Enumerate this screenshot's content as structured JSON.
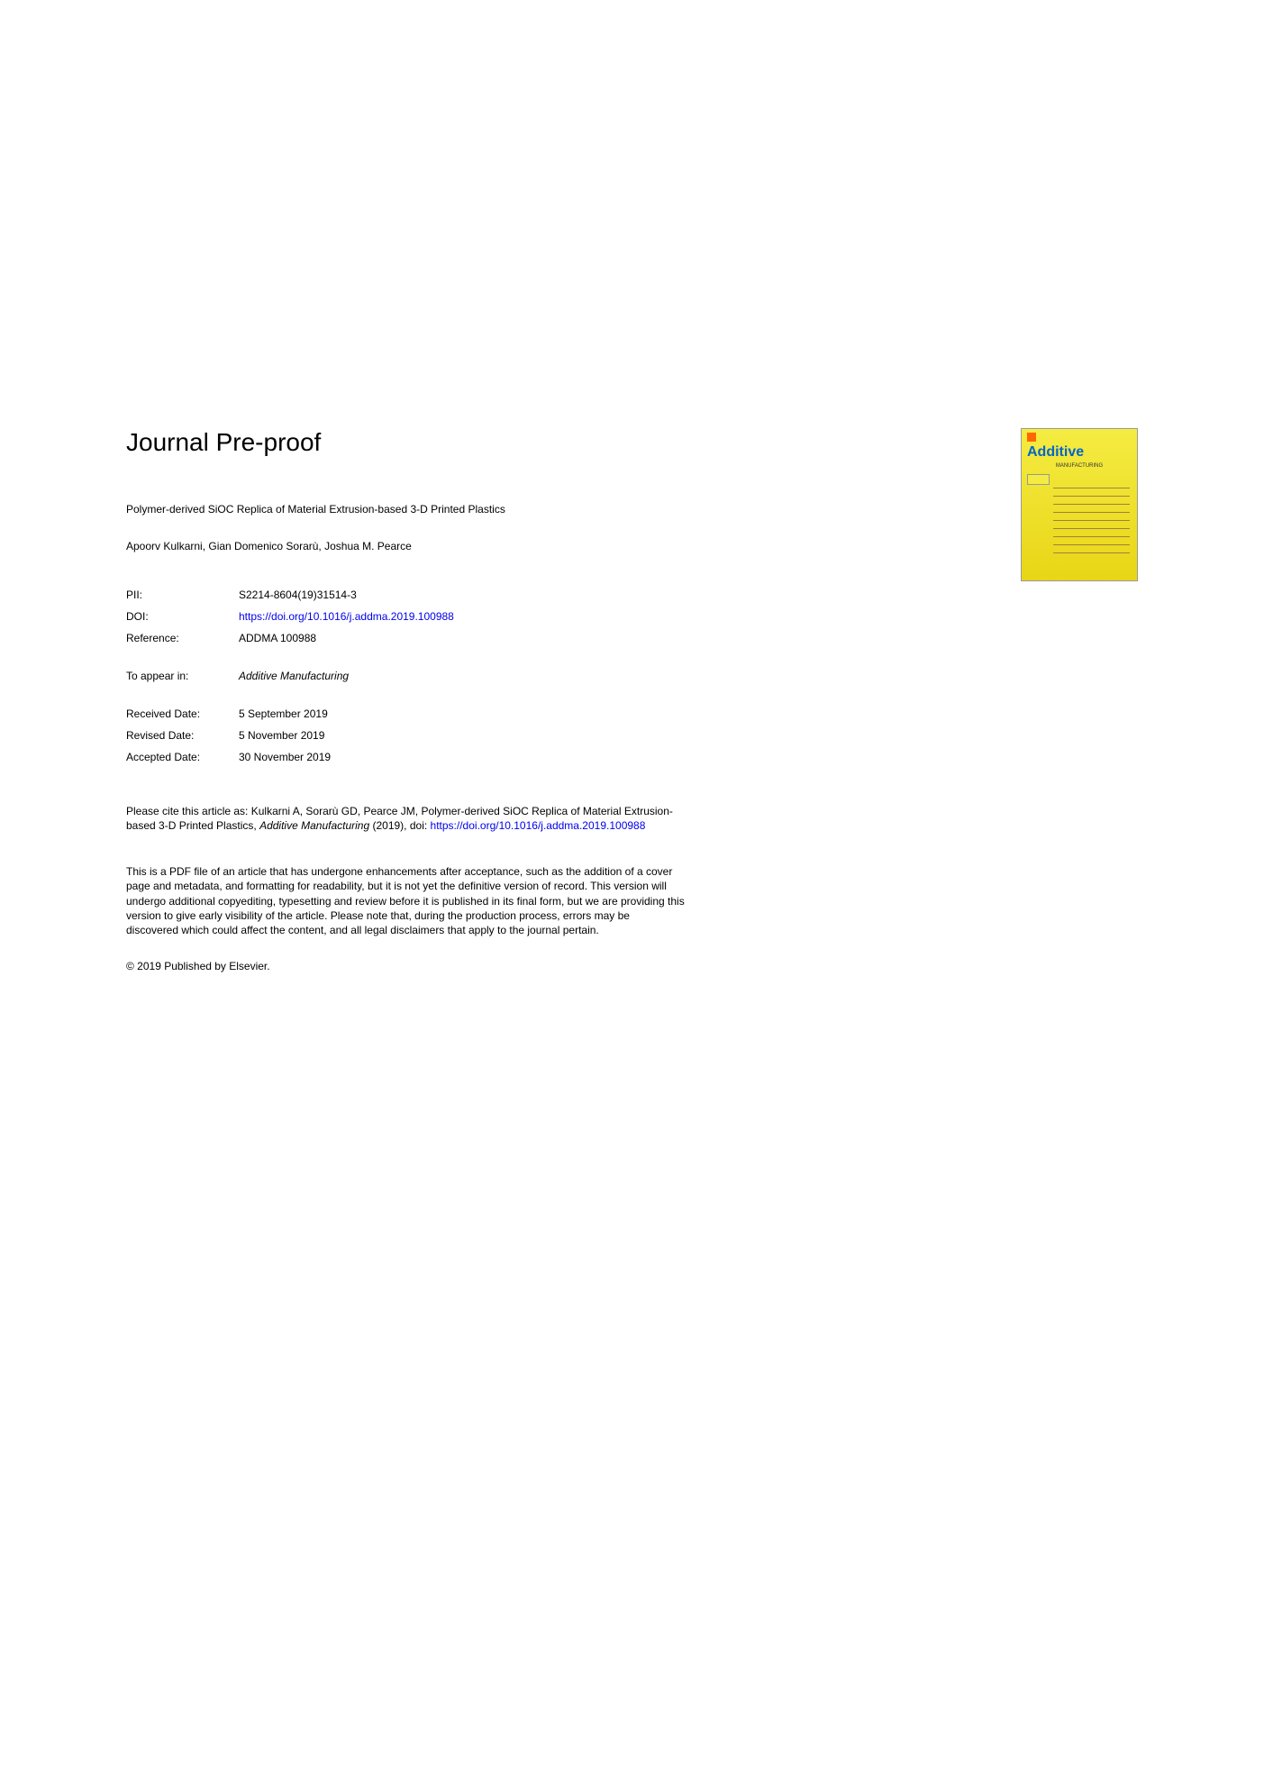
{
  "header": {
    "title": "Journal Pre-proof"
  },
  "cover": {
    "title": "Additive",
    "subtitle": "MANUFACTURING"
  },
  "article": {
    "title": "Polymer-derived SiOC Replica of Material Extrusion-based 3-D Printed Plastics",
    "authors": "Apoorv Kulkarni, Gian Domenico Sorarù, Joshua M. Pearce"
  },
  "meta": {
    "pii_label": "PII:",
    "pii_value": "S2214-8604(19)31514-3",
    "doi_label": "DOI:",
    "doi_value": "https://doi.org/10.1016/j.addma.2019.100988",
    "reference_label": "Reference:",
    "reference_value": "ADDMA 100988",
    "appear_label": "To appear in:",
    "appear_value": "Additive Manufacturing",
    "received_label": "Received Date:",
    "received_value": "5 September 2019",
    "revised_label": "Revised Date:",
    "revised_value": "5 November 2019",
    "accepted_label": "Accepted Date:",
    "accepted_value": "30 November 2019"
  },
  "citation": {
    "prefix": "Please cite this article as: Kulkarni A, Sorarù GD, Pearce JM, Polymer-derived SiOC Replica of Material Extrusion-based 3-D Printed Plastics, ",
    "journal": "Additive Manufacturing",
    "year": " (2019), doi: ",
    "doi_link": "https://doi.org/10.1016/j.addma.2019.100988"
  },
  "disclaimer": "This is a PDF file of an article that has undergone enhancements after acceptance, such as the addition of a cover page and metadata, and formatting for readability, but it is not yet the definitive version of record. This version will undergo additional copyediting, typesetting and review before it is published in its final form, but we are providing this version to give early visibility of the article. Please note that, during the production process, errors may be discovered which could affect the content, and all legal disclaimers that apply to the journal pertain.",
  "copyright": "© 2019 Published by Elsevier."
}
